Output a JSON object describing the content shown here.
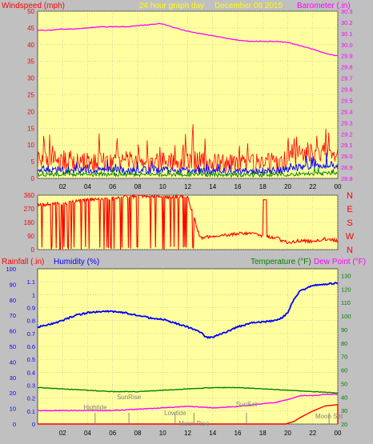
{
  "header": {
    "windspeed_label": "Windspeed (mph)",
    "period_label": "24 hour graph day",
    "date_label": "December 08 2015",
    "barometer_label": "Barometer (.in)"
  },
  "lower_header": {
    "rainfall_label": "Rainfall (.in)",
    "humidity_label": "Humidity (%)",
    "temperature_label": "Temperature (°F)",
    "dewpoint_label": "Dew Point (°F)"
  },
  "x_ticks": [
    "02",
    "04",
    "06",
    "08",
    "10",
    "12",
    "14",
    "16",
    "18",
    "20",
    "22",
    "00"
  ],
  "colors": {
    "background": "#c0c0c0",
    "plot_bg": "#ffffa0",
    "windspeed": "#ff0000",
    "wind_average": "#0000ff",
    "wind_low": "#008000",
    "barometer": "#ff00ff",
    "direction": "#ff0000",
    "humidity": "#0000ff",
    "temperature": "#008000",
    "dewpoint": "#ff00ff",
    "rainfall": "#ff0000",
    "header_wind": "#ff0000",
    "header_period": "#ffff00",
    "header_baro": "#ff00ff",
    "event_text": "#808080"
  },
  "events": [
    {
      "label": "Hightide",
      "hour": 4.6
    },
    {
      "label": "SunRise",
      "hour": 7.3
    },
    {
      "label": "Lowtide",
      "hour": 11.0
    },
    {
      "label": "Moon Rise",
      "hour": 12.5
    },
    {
      "label": "SunSet",
      "hour": 16.7
    },
    {
      "label": "Moon Set",
      "hour": 23.3
    }
  ],
  "chart_data": [
    {
      "type": "line",
      "name": "wind-barometer",
      "x_range": [
        0,
        24
      ],
      "left_axis": {
        "title": "Windspeed (mph)",
        "ylim": [
          0,
          50
        ],
        "ticks": [
          0,
          5,
          10,
          15,
          20,
          25,
          30,
          35,
          40,
          45,
          50
        ]
      },
      "right_axis": {
        "title": "Barometer (.in)",
        "ylim": [
          28.8,
          30.3
        ],
        "ticks": [
          28.8,
          28.9,
          29.0,
          29.1,
          29.2,
          29.3,
          29.4,
          29.5,
          29.6,
          29.7,
          29.8,
          29.9,
          30.0,
          30.1,
          30.2,
          30.3
        ]
      },
      "series": [
        {
          "name": "Barometer (.in)",
          "axis": "right",
          "x": [
            0,
            1,
            2,
            3,
            4,
            5,
            6,
            7,
            8,
            9,
            9.8,
            10.5,
            11,
            12,
            13,
            14,
            15,
            16,
            17,
            18,
            19,
            20,
            21,
            22,
            23,
            24
          ],
          "y": [
            30.13,
            30.13,
            30.14,
            30.14,
            30.15,
            30.16,
            30.16,
            30.16,
            30.17,
            30.18,
            30.19,
            30.17,
            30.15,
            30.12,
            30.1,
            30.08,
            30.06,
            30.04,
            30.03,
            30.03,
            30.03,
            30.02,
            29.99,
            29.96,
            29.92,
            29.9
          ]
        },
        {
          "name": "Windspeed gust",
          "axis": "left",
          "x": [
            0,
            2,
            4,
            6,
            8,
            10,
            12,
            14,
            16,
            18,
            19.5,
            20,
            21,
            22,
            23,
            24
          ],
          "y": [
            6,
            5.5,
            5,
            5,
            5.5,
            5,
            5.5,
            4.5,
            4.5,
            4.5,
            4.5,
            5,
            7,
            7.5,
            8,
            8
          ]
        },
        {
          "name": "Windspeed average",
          "axis": "left",
          "x": [
            0,
            2,
            4,
            6,
            8,
            10,
            12,
            14,
            16,
            18,
            20,
            21,
            22,
            23,
            24
          ],
          "y": [
            3,
            2.5,
            2.5,
            2.5,
            2.5,
            2.5,
            2.5,
            2,
            2,
            2.2,
            2.5,
            3.5,
            3.8,
            4,
            4
          ]
        },
        {
          "name": "Windspeed low",
          "axis": "left",
          "x": [
            0,
            4,
            8,
            12,
            16,
            20,
            22,
            24
          ],
          "y": [
            1.2,
            1.2,
            1.2,
            1.2,
            1.0,
            1.2,
            1.5,
            1.6
          ]
        }
      ]
    },
    {
      "type": "line",
      "name": "wind-direction",
      "x_range": [
        0,
        24
      ],
      "left_axis": {
        "ylim": [
          0,
          360
        ],
        "ticks": [
          0,
          90,
          180,
          270,
          360
        ]
      },
      "right_axis": {
        "ticks": [
          "N",
          "W",
          "S",
          "E",
          "N"
        ]
      },
      "series": [
        {
          "name": "Wind direction",
          "x": [
            0,
            1,
            2,
            3,
            4,
            5,
            6,
            7,
            8,
            9,
            10,
            11,
            12,
            13,
            14,
            15,
            16,
            17,
            18,
            19,
            20,
            21,
            22,
            23,
            24
          ],
          "y": [
            295,
            300,
            305,
            320,
            330,
            330,
            340,
            350,
            355,
            355,
            350,
            350,
            350,
            75,
            90,
            95,
            105,
            110,
            90,
            80,
            45,
            60,
            55,
            70,
            60
          ]
        }
      ]
    },
    {
      "type": "line",
      "name": "humidity-temperature",
      "x_range": [
        0,
        24
      ],
      "left_axis_outer": {
        "title": "Rainfall (.in)",
        "ylim": [
          0,
          100
        ],
        "ticks": [
          0,
          10,
          20,
          30,
          40,
          50,
          60,
          70,
          80,
          90,
          100
        ]
      },
      "left_axis_inner": {
        "title": "Humidity (%)",
        "ylim": [
          0,
          1.2
        ],
        "ticks": [
          0,
          0.1,
          0.2,
          0.3,
          0.4,
          0.5,
          0.6,
          0.7,
          0.8,
          0.9,
          1,
          1.1
        ]
      },
      "right_axis": {
        "title": "Temperature (°F) / Dew Point (°F)",
        "ylim": [
          20,
          135
        ],
        "ticks": [
          20,
          30,
          40,
          50,
          60,
          70,
          80,
          90,
          100,
          110,
          120,
          130
        ]
      },
      "series": [
        {
          "name": "Humidity (%)",
          "x": [
            0,
            0.5,
            1,
            2,
            3,
            4,
            5,
            6,
            7,
            8,
            9,
            10,
            11,
            12,
            13,
            13.5,
            14,
            15,
            16,
            17,
            18,
            19,
            19.5,
            20,
            20.5,
            21,
            22,
            23,
            24
          ],
          "y": [
            0.75,
            0.76,
            0.77,
            0.8,
            0.84,
            0.86,
            0.87,
            0.87,
            0.86,
            0.84,
            0.82,
            0.81,
            0.78,
            0.75,
            0.71,
            0.67,
            0.67,
            0.71,
            0.75,
            0.78,
            0.79,
            0.8,
            0.82,
            0.86,
            0.97,
            1.03,
            1.07,
            1.08,
            1.09
          ]
        },
        {
          "name": "Temperature (°F)",
          "x": [
            0,
            2,
            4,
            6,
            8,
            10,
            12,
            14,
            16,
            18,
            20,
            22,
            24
          ],
          "y": [
            47,
            46,
            45,
            44,
            44,
            45,
            46,
            47,
            47,
            46,
            45,
            44,
            43
          ]
        },
        {
          "name": "Dew Point (°F)",
          "x": [
            0,
            2,
            4,
            6,
            8,
            10,
            12,
            14,
            16,
            18,
            19,
            20,
            21,
            22,
            23,
            24
          ],
          "y": [
            30,
            30,
            30,
            30,
            31,
            32,
            33,
            32,
            33,
            35,
            36,
            38,
            41,
            41,
            42,
            42
          ]
        },
        {
          "name": "Rainfall (.in)",
          "x": [
            0,
            19,
            19.8,
            20.5,
            21,
            22,
            23,
            24,
            24
          ],
          "y": [
            0,
            0,
            0,
            0.02,
            0.05,
            0.1,
            0.14,
            0.15,
            0
          ]
        }
      ]
    }
  ]
}
